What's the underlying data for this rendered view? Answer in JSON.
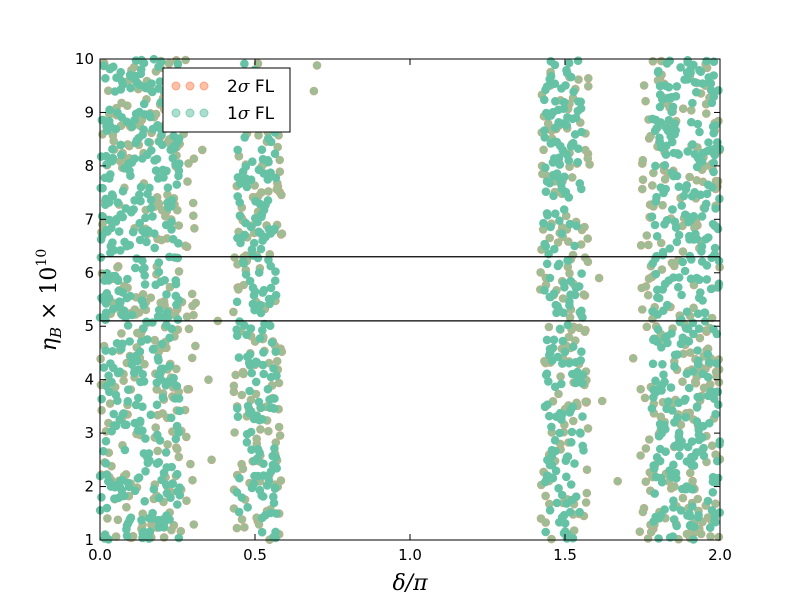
{
  "chart_data": {
    "type": "scatter",
    "title": "",
    "xlabel": "δ/π",
    "ylabel": "η_B × 10^10",
    "xlim": [
      0.0,
      2.0
    ],
    "ylim": [
      1,
      10
    ],
    "x_ticks": [
      "0.0",
      "0.5",
      "1.0",
      "1.5",
      "2.0"
    ],
    "y_ticks": [
      "1",
      "2",
      "3",
      "4",
      "5",
      "6",
      "7",
      "8",
      "9",
      "10"
    ],
    "grid": false,
    "legend_position": "top-left",
    "horizontal_lines": [
      5.1,
      6.3
    ],
    "series": [
      {
        "name": "2σ FL",
        "color": "#fc8d62",
        "bands": [
          [
            0.0,
            0.31
          ],
          [
            0.43,
            0.59
          ],
          [
            1.42,
            1.58
          ],
          [
            1.74,
            2.0
          ]
        ],
        "outliers": [
          [
            0.7,
            9.88
          ],
          [
            0.69,
            9.4
          ],
          [
            0.38,
            5.1
          ],
          [
            1.8,
            9.6
          ],
          [
            1.61,
            5.9
          ]
        ]
      },
      {
        "name": "1σ FL",
        "color": "#66c2a5",
        "bands": [
          [
            0.0,
            0.26
          ],
          [
            0.44,
            0.57
          ],
          [
            1.43,
            1.56
          ],
          [
            1.78,
            2.0
          ]
        ],
        "outliers": [
          [
            0.33,
            8.3
          ],
          [
            0.35,
            4.0
          ],
          [
            0.36,
            2.5
          ],
          [
            1.62,
            3.6
          ],
          [
            1.67,
            2.1
          ],
          [
            1.72,
            4.4
          ]
        ]
      }
    ]
  }
}
